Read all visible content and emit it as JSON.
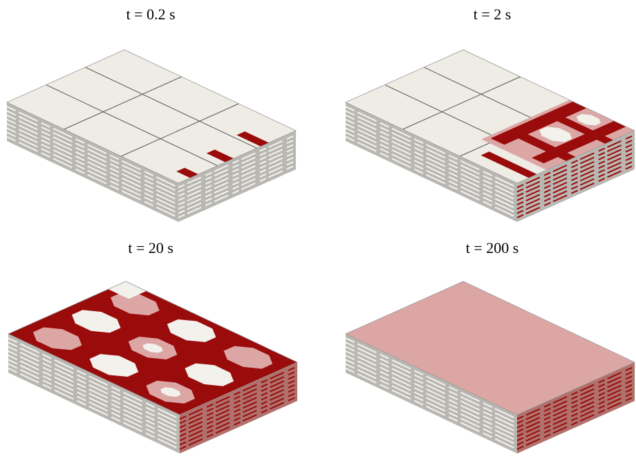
{
  "panels": [
    {
      "title": "t = 0.2 s"
    },
    {
      "title": "t = 2 s"
    },
    {
      "title": "t = 20 s"
    },
    {
      "title": "t = 200 s"
    }
  ]
}
